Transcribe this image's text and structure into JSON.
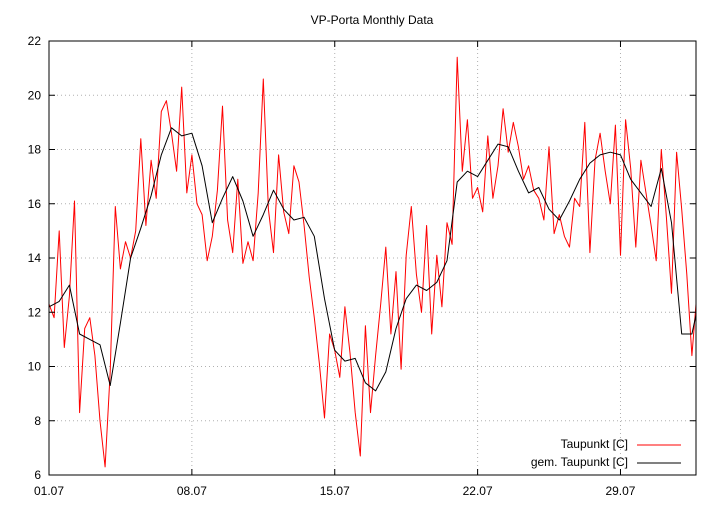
{
  "chart_data": {
    "type": "line",
    "title": "VP-Porta Monthly Data",
    "xlabel": "",
    "ylabel": "",
    "x_ticks": [
      "01.07",
      "08.07",
      "15.07",
      "22.07",
      "29.07"
    ],
    "x_tick_days": [
      1,
      8,
      15,
      22,
      29
    ],
    "xlim": [
      1,
      32.7
    ],
    "ylim": [
      6,
      22
    ],
    "y_ticks": [
      6,
      8,
      10,
      12,
      14,
      16,
      18,
      20,
      22
    ],
    "grid": true,
    "legend_position": "bottom-right",
    "colors": {
      "raw": "#ff0000",
      "smoothed": "#000000",
      "grid": "#b0b0b0"
    },
    "series": [
      {
        "name": "Taupunkt [C]",
        "style": "raw",
        "x": [
          1.0,
          1.25,
          1.5,
          1.75,
          2.0,
          2.25,
          2.5,
          2.75,
          3.0,
          3.25,
          3.5,
          3.75,
          4.0,
          4.25,
          4.5,
          4.75,
          5.0,
          5.25,
          5.5,
          5.75,
          6.0,
          6.25,
          6.5,
          6.75,
          7.0,
          7.25,
          7.5,
          7.75,
          8.0,
          8.25,
          8.5,
          8.75,
          9.0,
          9.25,
          9.5,
          9.75,
          10.0,
          10.25,
          10.5,
          10.75,
          11.0,
          11.25,
          11.5,
          11.75,
          12.0,
          12.25,
          12.5,
          12.75,
          13.0,
          13.25,
          13.5,
          13.75,
          14.0,
          14.25,
          14.5,
          14.75,
          15.0,
          15.25,
          15.5,
          15.75,
          16.0,
          16.25,
          16.5,
          16.75,
          17.0,
          17.25,
          17.5,
          17.75,
          18.0,
          18.25,
          18.5,
          18.75,
          19.0,
          19.25,
          19.5,
          19.75,
          20.0,
          20.25,
          20.5,
          20.75,
          21.0,
          21.25,
          21.5,
          21.75,
          22.0,
          22.25,
          22.5,
          22.75,
          23.0,
          23.25,
          23.5,
          23.75,
          24.0,
          24.25,
          24.5,
          24.75,
          25.0,
          25.25,
          25.5,
          25.75,
          26.0,
          26.25,
          26.5,
          26.75,
          27.0,
          27.25,
          27.5,
          27.75,
          28.0,
          28.25,
          28.5,
          28.75,
          29.0,
          29.25,
          29.5,
          29.75,
          30.0,
          30.25,
          30.5,
          30.75,
          31.0,
          31.25,
          31.5,
          31.75,
          32.0,
          32.25,
          32.5,
          32.7
        ],
        "values": [
          12.3,
          11.8,
          15.0,
          10.7,
          12.6,
          16.1,
          8.3,
          11.4,
          11.8,
          10.4,
          8.0,
          6.3,
          9.8,
          15.9,
          13.6,
          14.6,
          14.0,
          15.0,
          18.4,
          15.2,
          17.6,
          16.2,
          19.4,
          19.8,
          18.6,
          17.2,
          20.3,
          16.4,
          17.8,
          16.0,
          15.6,
          13.9,
          14.8,
          16.5,
          19.6,
          15.4,
          14.2,
          16.9,
          13.8,
          14.6,
          13.9,
          16.4,
          20.6,
          15.8,
          14.2,
          17.8,
          15.7,
          14.9,
          17.4,
          16.8,
          15.2,
          13.3,
          11.8,
          10.1,
          8.1,
          11.2,
          10.6,
          9.6,
          12.2,
          10.5,
          8.3,
          6.7,
          11.5,
          8.3,
          10.4,
          12.3,
          14.4,
          11.2,
          13.5,
          9.9,
          14.1,
          15.9,
          13.4,
          12.0,
          15.2,
          11.2,
          14.1,
          12.2,
          15.3,
          14.5,
          21.4,
          17.2,
          19.1,
          16.2,
          16.6,
          15.7,
          18.5,
          16.2,
          17.4,
          19.5,
          17.9,
          19.0,
          18.1,
          16.9,
          17.4,
          16.5,
          16.2,
          15.4,
          18.1,
          14.9,
          15.6,
          14.8,
          14.4,
          16.2,
          15.9,
          19.0,
          14.2,
          17.6,
          18.6,
          17.2,
          16.0,
          18.9,
          14.1,
          19.1,
          17.3,
          14.4,
          17.6,
          16.4,
          15.2,
          13.9,
          18.0,
          15.5,
          12.7,
          17.9,
          15.8,
          13.4,
          10.4,
          12.3
        ]
      },
      {
        "name": "gem. Taupunkt [C]",
        "style": "smoothed",
        "x": [
          1.0,
          1.5,
          2.0,
          2.5,
          3.0,
          3.5,
          4.0,
          4.5,
          5.0,
          5.5,
          6.0,
          6.5,
          7.0,
          7.5,
          8.0,
          8.5,
          9.0,
          9.5,
          10.0,
          10.5,
          11.0,
          11.5,
          12.0,
          12.5,
          13.0,
          13.5,
          14.0,
          14.5,
          15.0,
          15.5,
          16.0,
          16.5,
          17.0,
          17.5,
          18.0,
          18.5,
          19.0,
          19.5,
          20.0,
          20.5,
          21.0,
          21.5,
          22.0,
          22.5,
          23.0,
          23.5,
          24.0,
          24.5,
          25.0,
          25.5,
          26.0,
          26.5,
          27.0,
          27.5,
          28.0,
          28.5,
          29.0,
          29.5,
          30.0,
          30.5,
          31.0,
          31.5,
          32.0,
          32.5,
          32.7
        ],
        "values": [
          12.2,
          12.4,
          13.0,
          11.2,
          11.0,
          10.8,
          9.3,
          11.6,
          14.0,
          15.1,
          16.3,
          17.8,
          18.8,
          18.5,
          18.6,
          17.4,
          15.3,
          16.2,
          17.0,
          16.1,
          14.8,
          15.6,
          16.5,
          15.8,
          15.4,
          15.5,
          14.8,
          12.5,
          10.6,
          10.2,
          10.3,
          9.4,
          9.1,
          9.8,
          11.4,
          12.5,
          13.0,
          12.8,
          13.1,
          13.9,
          16.8,
          17.2,
          17.0,
          17.6,
          18.2,
          18.1,
          17.2,
          16.4,
          16.6,
          15.8,
          15.4,
          16.1,
          16.9,
          17.5,
          17.8,
          17.9,
          17.8,
          16.9,
          16.4,
          15.9,
          17.3,
          15.3,
          11.2,
          11.2,
          11.9
        ]
      }
    ]
  }
}
